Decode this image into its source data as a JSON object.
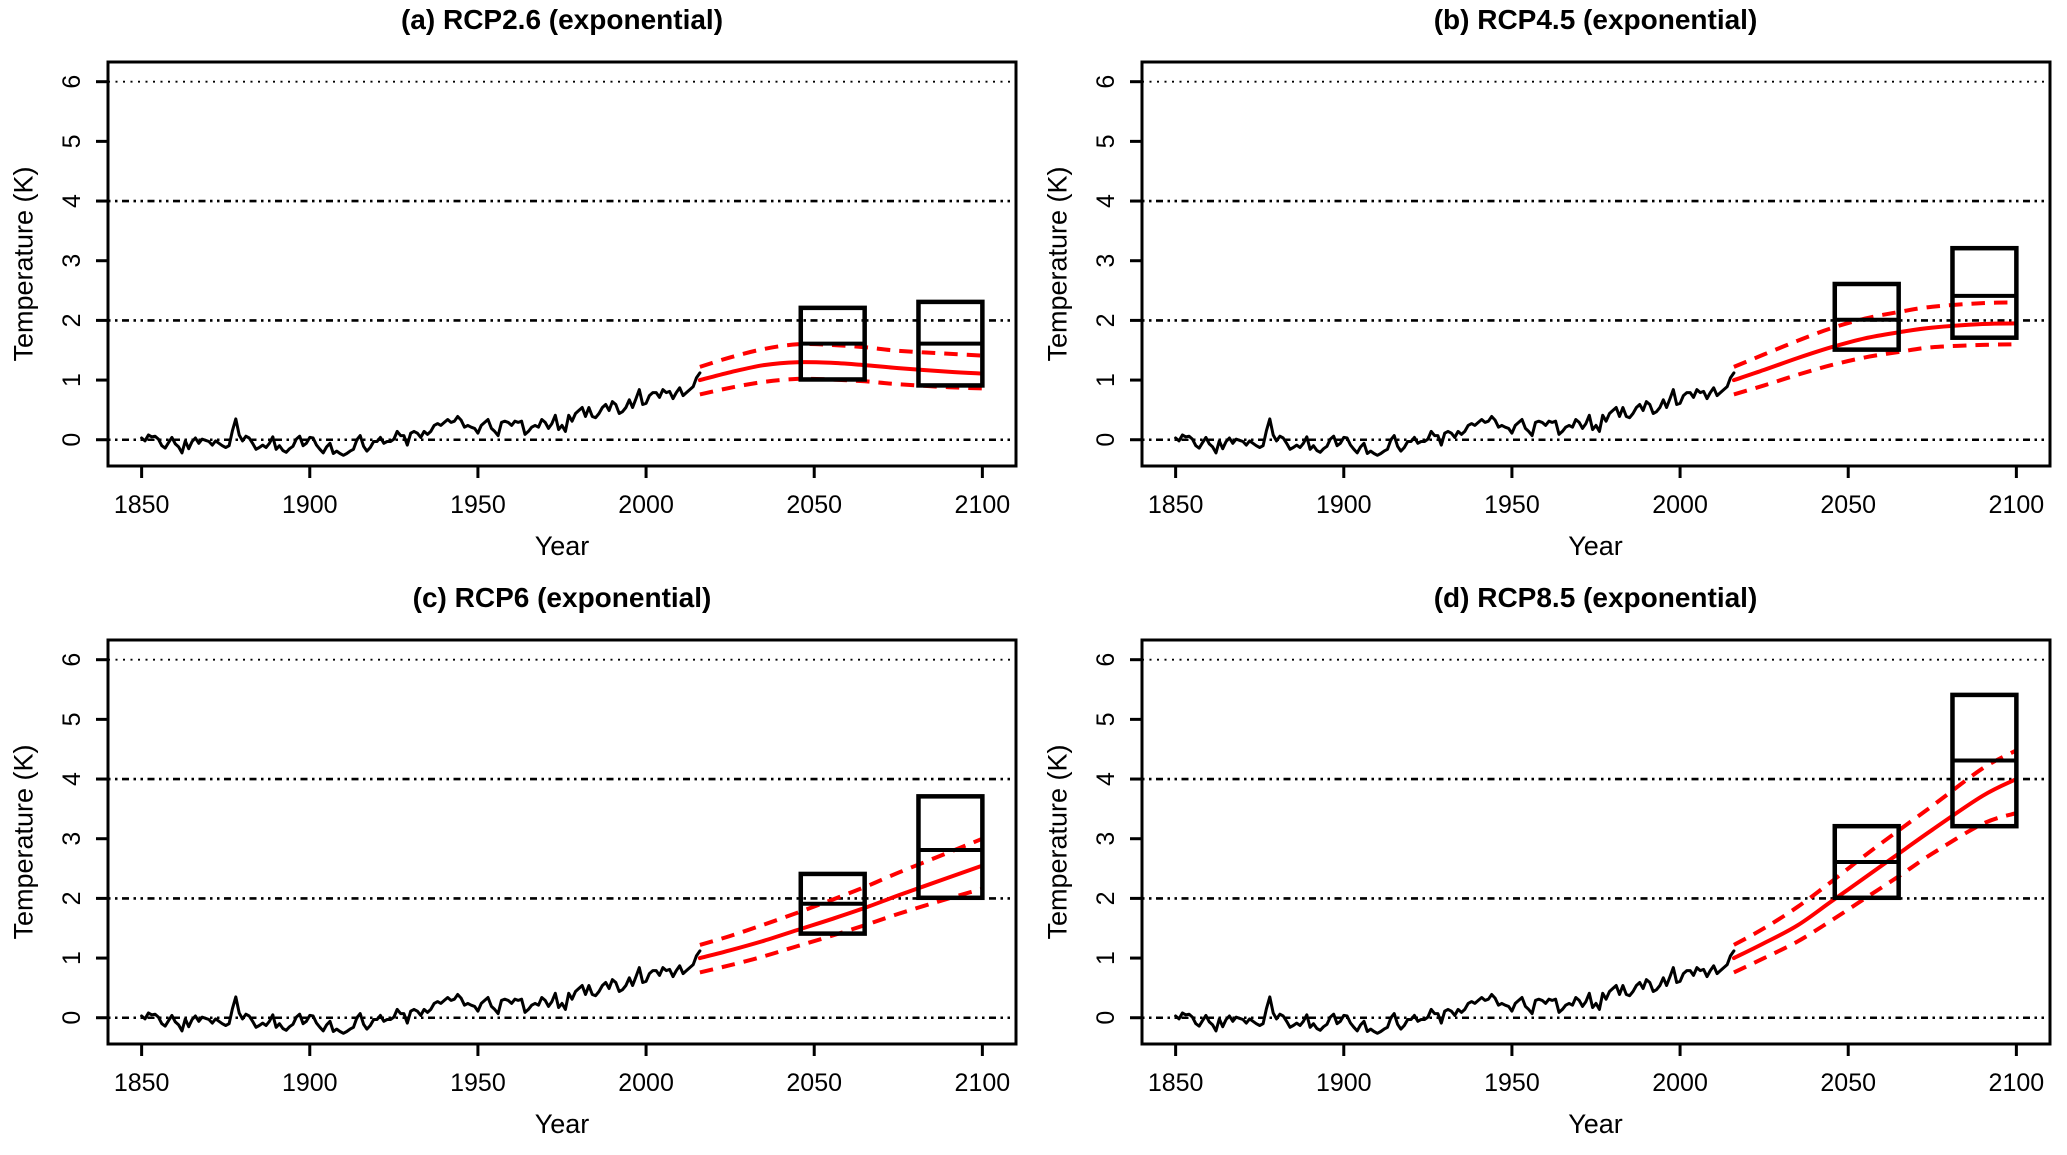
{
  "colors": {
    "observed_line": "#000000",
    "projection_line": "#FF0000",
    "ipcc_box": "#000000",
    "background": "#FFFFFF"
  },
  "historical": {
    "description": "Observed global temperature anomaly (black solid line), shared by all four panels",
    "start_year": 1850,
    "end_year": 2016,
    "values": [
      0.03,
      -0.02,
      0.08,
      0.05,
      0.06,
      0.01,
      -0.1,
      -0.14,
      -0.05,
      0.04,
      -0.07,
      -0.12,
      -0.22,
      -0.02,
      -0.15,
      -0.03,
      0.03,
      -0.06,
      0.01,
      -0.01,
      -0.03,
      -0.09,
      -0.02,
      -0.06,
      -0.1,
      -0.13,
      -0.1,
      0.15,
      0.35,
      0.08,
      -0.02,
      0.06,
      0.03,
      -0.06,
      -0.16,
      -0.13,
      -0.09,
      -0.13,
      -0.06,
      0.05,
      -0.16,
      -0.1,
      -0.18,
      -0.21,
      -0.15,
      -0.11,
      0.01,
      0.06,
      -0.1,
      -0.06,
      0.04,
      0.03,
      -0.09,
      -0.16,
      -0.22,
      -0.12,
      -0.06,
      -0.23,
      -0.19,
      -0.23,
      -0.26,
      -0.23,
      -0.19,
      -0.16,
      0.0,
      0.07,
      -0.11,
      -0.19,
      -0.13,
      -0.03,
      -0.03,
      0.04,
      -0.06,
      -0.03,
      -0.03,
      0.01,
      0.14,
      0.07,
      0.07,
      -0.09,
      0.11,
      0.14,
      0.11,
      0.04,
      0.14,
      0.09,
      0.14,
      0.24,
      0.27,
      0.24,
      0.29,
      0.34,
      0.29,
      0.31,
      0.39,
      0.33,
      0.21,
      0.24,
      0.21,
      0.19,
      0.11,
      0.24,
      0.29,
      0.34,
      0.19,
      0.14,
      0.07,
      0.29,
      0.31,
      0.29,
      0.24,
      0.31,
      0.29,
      0.31,
      0.09,
      0.14,
      0.21,
      0.24,
      0.21,
      0.34,
      0.29,
      0.19,
      0.27,
      0.41,
      0.17,
      0.24,
      0.14,
      0.41,
      0.31,
      0.44,
      0.49,
      0.54,
      0.39,
      0.54,
      0.39,
      0.37,
      0.44,
      0.54,
      0.59,
      0.49,
      0.64,
      0.59,
      0.44,
      0.47,
      0.54,
      0.67,
      0.54,
      0.69,
      0.84,
      0.59,
      0.61,
      0.74,
      0.79,
      0.79,
      0.71,
      0.84,
      0.79,
      0.81,
      0.69,
      0.79,
      0.87,
      0.74,
      0.79,
      0.84,
      0.89,
      1.04,
      1.12
    ]
  },
  "chart_data": [
    {
      "type": "line",
      "panel": "a",
      "title": "(a) RCP2.6 (exponential)",
      "xlabel": "Year",
      "ylabel": "Temperature (K)",
      "xlim": [
        1840,
        2110
      ],
      "ylim": [
        -0.44,
        6.33
      ],
      "xticks": [
        1850,
        1900,
        1950,
        2000,
        2050,
        2100
      ],
      "yticks": [
        0,
        1,
        2,
        3,
        4,
        5,
        6
      ],
      "gridlines_y": [
        0,
        2,
        4,
        6
      ],
      "grid": true,
      "legend_position": "none",
      "historical_ref": "historical",
      "projection": {
        "years": [
          2016,
          2025,
          2035,
          2045,
          2055,
          2065,
          2075,
          2090,
          2100
        ],
        "central": [
          1.0,
          1.13,
          1.25,
          1.3,
          1.29,
          1.25,
          1.2,
          1.14,
          1.11
        ],
        "upper": [
          1.22,
          1.38,
          1.52,
          1.6,
          1.59,
          1.55,
          1.49,
          1.44,
          1.41
        ],
        "lower": [
          0.76,
          0.87,
          0.97,
          1.02,
          1.01,
          0.98,
          0.93,
          0.88,
          0.86
        ]
      },
      "ipcc_boxes": [
        {
          "label": "2046-2065 likely range",
          "x0": 2046,
          "x1": 2065,
          "low": 1.01,
          "high": 2.21,
          "mean": 1.61
        },
        {
          "label": "2081-2100 likely range",
          "x0": 2081,
          "x1": 2100,
          "low": 0.91,
          "high": 2.31,
          "mean": 1.61
        }
      ]
    },
    {
      "type": "line",
      "panel": "b",
      "title": "(b) RCP4.5 (exponential)",
      "xlabel": "Year",
      "ylabel": "Temperature (K)",
      "xlim": [
        1840,
        2110
      ],
      "ylim": [
        -0.44,
        6.33
      ],
      "xticks": [
        1850,
        1900,
        1950,
        2000,
        2050,
        2100
      ],
      "yticks": [
        0,
        1,
        2,
        3,
        4,
        5,
        6
      ],
      "gridlines_y": [
        0,
        2,
        4,
        6
      ],
      "grid": true,
      "legend_position": "none",
      "historical_ref": "historical",
      "projection": {
        "years": [
          2016,
          2025,
          2035,
          2045,
          2055,
          2065,
          2075,
          2090,
          2100
        ],
        "central": [
          1.0,
          1.17,
          1.37,
          1.55,
          1.7,
          1.8,
          1.88,
          1.94,
          1.95
        ],
        "upper": [
          1.22,
          1.43,
          1.66,
          1.87,
          2.03,
          2.14,
          2.23,
          2.29,
          2.3
        ],
        "lower": [
          0.76,
          0.91,
          1.09,
          1.25,
          1.38,
          1.47,
          1.55,
          1.59,
          1.6
        ]
      },
      "ipcc_boxes": [
        {
          "label": "2046-2065 likely range",
          "x0": 2046,
          "x1": 2065,
          "low": 1.51,
          "high": 2.61,
          "mean": 2.01
        },
        {
          "label": "2081-2100 likely range",
          "x0": 2081,
          "x1": 2100,
          "low": 1.71,
          "high": 3.21,
          "mean": 2.41
        }
      ]
    },
    {
      "type": "line",
      "panel": "c",
      "title": "(c) RCP6 (exponential)",
      "xlabel": "Year",
      "ylabel": "Temperature (K)",
      "xlim": [
        1840,
        2110
      ],
      "ylim": [
        -0.44,
        6.33
      ],
      "xticks": [
        1850,
        1900,
        1950,
        2000,
        2050,
        2100
      ],
      "yticks": [
        0,
        1,
        2,
        3,
        4,
        5,
        6
      ],
      "gridlines_y": [
        0,
        2,
        4,
        6
      ],
      "grid": true,
      "legend_position": "none",
      "historical_ref": "historical",
      "projection": {
        "years": [
          2016,
          2025,
          2035,
          2045,
          2055,
          2065,
          2075,
          2090,
          2100
        ],
        "central": [
          1.0,
          1.13,
          1.29,
          1.47,
          1.65,
          1.84,
          2.05,
          2.35,
          2.55
        ],
        "upper": [
          1.22,
          1.37,
          1.56,
          1.76,
          1.97,
          2.19,
          2.43,
          2.77,
          3.0
        ],
        "lower": [
          0.76,
          0.88,
          1.03,
          1.2,
          1.37,
          1.55,
          1.74,
          2.0,
          2.16
        ]
      },
      "ipcc_boxes": [
        {
          "label": "2046-2065 likely range",
          "x0": 2046,
          "x1": 2065,
          "low": 1.41,
          "high": 2.41,
          "mean": 1.91
        },
        {
          "label": "2081-2100 likely range",
          "x0": 2081,
          "x1": 2100,
          "low": 2.01,
          "high": 3.71,
          "mean": 2.81
        }
      ]
    },
    {
      "type": "line",
      "panel": "d",
      "title": "(d) RCP8.5 (exponential)",
      "xlabel": "Year",
      "ylabel": "Temperature (K)",
      "xlim": [
        1840,
        2110
      ],
      "ylim": [
        -0.44,
        6.33
      ],
      "xticks": [
        1850,
        1900,
        1950,
        2000,
        2050,
        2100
      ],
      "yticks": [
        0,
        1,
        2,
        3,
        4,
        5,
        6
      ],
      "gridlines_y": [
        0,
        2,
        4,
        6
      ],
      "grid": true,
      "legend_position": "none",
      "historical_ref": "historical",
      "projection": {
        "years": [
          2016,
          2025,
          2035,
          2045,
          2055,
          2065,
          2075,
          2090,
          2100
        ],
        "central": [
          1.0,
          1.25,
          1.55,
          1.95,
          2.35,
          2.75,
          3.15,
          3.72,
          4.0
        ],
        "upper": [
          1.22,
          1.5,
          1.86,
          2.28,
          2.72,
          3.14,
          3.55,
          4.18,
          4.48
        ],
        "lower": [
          0.76,
          1.0,
          1.28,
          1.63,
          2.0,
          2.37,
          2.75,
          3.25,
          3.43
        ]
      },
      "ipcc_boxes": [
        {
          "label": "2046-2065 likely range",
          "x0": 2046,
          "x1": 2065,
          "low": 2.01,
          "high": 3.21,
          "mean": 2.61
        },
        {
          "label": "2081-2100 likely range",
          "x0": 2081,
          "x1": 2100,
          "low": 3.21,
          "high": 5.41,
          "mean": 4.31
        }
      ]
    }
  ]
}
